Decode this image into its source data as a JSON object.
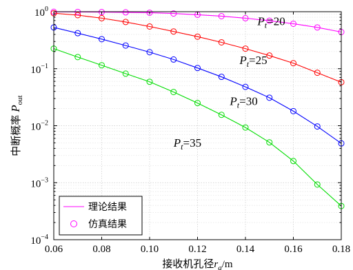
{
  "chart_data": {
    "type": "line",
    "xlabel": {
      "main": "接收机孔径",
      "var": "r",
      "sub": "a",
      "unit": "/m"
    },
    "ylabel": {
      "main": "中断概率",
      "var": "P",
      "sub": "out"
    },
    "xlim": [
      0.06,
      0.18
    ],
    "ylim": [
      0.0001,
      1
    ],
    "yscale": "log",
    "grid": "major and minor, dotted",
    "xticks": [
      "0.06",
      "0.08",
      "0.10",
      "0.12",
      "0.14",
      "0.16",
      "0.18"
    ],
    "yticks": [
      {
        "value": 0.0001,
        "base": "10",
        "exp": "−4"
      },
      {
        "value": 0.001,
        "base": "10",
        "exp": "−3"
      },
      {
        "value": 0.01,
        "base": "10",
        "exp": "−2"
      },
      {
        "value": 0.1,
        "base": "10",
        "exp": "−1"
      },
      {
        "value": 1,
        "base": "10",
        "exp": "0"
      }
    ],
    "legend": {
      "placement": "bottom-left",
      "entries": [
        {
          "label": "理论结果",
          "style": "line"
        },
        {
          "label": "仿真结果",
          "style": "marker"
        }
      ]
    },
    "x": [
      0.06,
      0.07,
      0.08,
      0.09,
      0.1,
      0.11,
      0.12,
      0.13,
      0.14,
      0.15,
      0.16,
      0.17,
      0.18
    ],
    "series": [
      {
        "annotation": {
          "var": "P",
          "sub": "t",
          "text": "=20"
        },
        "annotation_at": [
          0.145,
          0.58
        ],
        "color": "#ff00ff",
        "values": [
          0.995,
          0.99,
          0.985,
          0.975,
          0.96,
          0.93,
          0.885,
          0.835,
          0.77,
          0.695,
          0.615,
          0.53,
          0.44
        ]
      },
      {
        "annotation": {
          "var": "P",
          "sub": "t",
          "text": "=25"
        },
        "annotation_at": [
          0.1375,
          0.12
        ],
        "color": "#ff0000",
        "values": [
          0.94,
          0.87,
          0.77,
          0.66,
          0.55,
          0.45,
          0.365,
          0.29,
          0.225,
          0.17,
          0.125,
          0.085,
          0.058
        ]
      },
      {
        "annotation": {
          "var": "P",
          "sub": "t",
          "text": "=30"
        },
        "annotation_at": [
          0.1335,
          0.023
        ],
        "color": "#0000ff",
        "values": [
          0.53,
          0.42,
          0.33,
          0.255,
          0.195,
          0.145,
          0.103,
          0.072,
          0.048,
          0.031,
          0.018,
          0.0097,
          0.0049
        ]
      },
      {
        "annotation": {
          "var": "P",
          "sub": "t",
          "text": "=35"
        },
        "annotation_at": [
          0.11,
          0.0043
        ],
        "color": "#00dd00",
        "values": [
          0.225,
          0.16,
          0.115,
          0.082,
          0.059,
          0.039,
          0.025,
          0.0155,
          0.0093,
          0.0051,
          0.0024,
          0.00093,
          0.00039
        ]
      }
    ]
  }
}
